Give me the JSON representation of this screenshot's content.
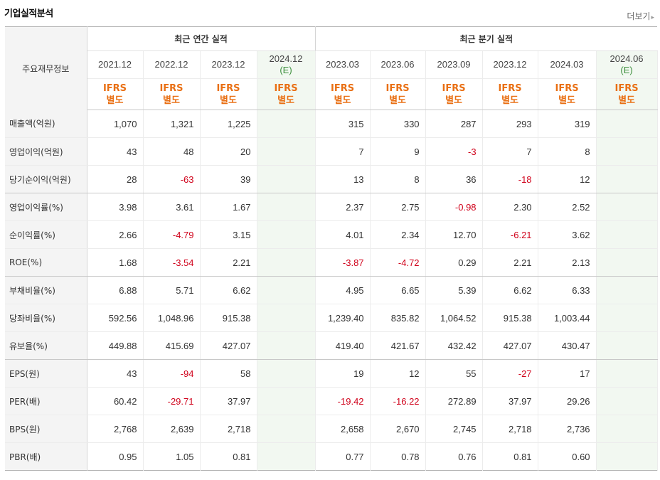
{
  "title": "기업실적분석",
  "more_label": "더보기",
  "header": {
    "row_label": "주요재무정보",
    "annual_group": "최근 연간 실적",
    "quarter_group": "최근 분기 실적"
  },
  "periods": [
    {
      "label": "2021.12",
      "sub": "",
      "estimate": false
    },
    {
      "label": "2022.12",
      "sub": "",
      "estimate": false
    },
    {
      "label": "2023.12",
      "sub": "",
      "estimate": false
    },
    {
      "label": "2024.12",
      "sub": "(E)",
      "estimate": true
    },
    {
      "label": "2023.03",
      "sub": "",
      "estimate": false
    },
    {
      "label": "2023.06",
      "sub": "",
      "estimate": false
    },
    {
      "label": "2023.09",
      "sub": "",
      "estimate": false
    },
    {
      "label": "2023.12",
      "sub": "",
      "estimate": false
    },
    {
      "label": "2024.03",
      "sub": "",
      "estimate": false
    },
    {
      "label": "2024.06",
      "sub": "(E)",
      "estimate": true
    }
  ],
  "accounting": {
    "line1": "IFRS",
    "line2": "별도"
  },
  "rows": [
    {
      "label": "매출액(억원)",
      "values": [
        "1,070",
        "1,321",
        "1,225",
        "",
        "315",
        "330",
        "287",
        "293",
        "319",
        ""
      ]
    },
    {
      "label": "영업이익(억원)",
      "values": [
        "43",
        "48",
        "20",
        "",
        "7",
        "9",
        "-3",
        "7",
        "8",
        ""
      ]
    },
    {
      "label": "당기순이익(억원)",
      "values": [
        "28",
        "-63",
        "39",
        "",
        "13",
        "8",
        "36",
        "-18",
        "12",
        ""
      ],
      "group_end": true
    },
    {
      "label": "영업이익률(%)",
      "values": [
        "3.98",
        "3.61",
        "1.67",
        "",
        "2.37",
        "2.75",
        "-0.98",
        "2.30",
        "2.52",
        ""
      ]
    },
    {
      "label": "순이익률(%)",
      "values": [
        "2.66",
        "-4.79",
        "3.15",
        "",
        "4.01",
        "2.34",
        "12.70",
        "-6.21",
        "3.62",
        ""
      ]
    },
    {
      "label": "ROE(%)",
      "values": [
        "1.68",
        "-3.54",
        "2.21",
        "",
        "-3.87",
        "-4.72",
        "0.29",
        "2.21",
        "2.13",
        ""
      ],
      "group_end": true
    },
    {
      "label": "부채비율(%)",
      "values": [
        "6.88",
        "5.71",
        "6.62",
        "",
        "4.95",
        "6.65",
        "5.39",
        "6.62",
        "6.33",
        ""
      ]
    },
    {
      "label": "당좌비율(%)",
      "values": [
        "592.56",
        "1,048.96",
        "915.38",
        "",
        "1,239.40",
        "835.82",
        "1,064.52",
        "915.38",
        "1,003.44",
        ""
      ]
    },
    {
      "label": "유보율(%)",
      "values": [
        "449.88",
        "415.69",
        "427.07",
        "",
        "419.40",
        "421.67",
        "432.42",
        "427.07",
        "430.47",
        ""
      ],
      "group_end": true
    },
    {
      "label": "EPS(원)",
      "values": [
        "43",
        "-94",
        "58",
        "",
        "19",
        "12",
        "55",
        "-27",
        "17",
        ""
      ]
    },
    {
      "label": "PER(배)",
      "values": [
        "60.42",
        "-29.71",
        "37.97",
        "",
        "-19.42",
        "-16.22",
        "272.89",
        "37.97",
        "29.26",
        ""
      ]
    },
    {
      "label": "BPS(원)",
      "values": [
        "2,768",
        "2,639",
        "2,718",
        "",
        "2,658",
        "2,670",
        "2,745",
        "2,718",
        "2,736",
        ""
      ]
    },
    {
      "label": "PBR(배)",
      "values": [
        "0.95",
        "1.05",
        "0.81",
        "",
        "0.77",
        "0.78",
        "0.76",
        "0.81",
        "0.60",
        ""
      ]
    }
  ],
  "colors": {
    "negative": "#d0021b",
    "accounting": "#e96f13",
    "estimate_bg": "#f2f8f1",
    "estimate_text": "#3c8f3c"
  }
}
